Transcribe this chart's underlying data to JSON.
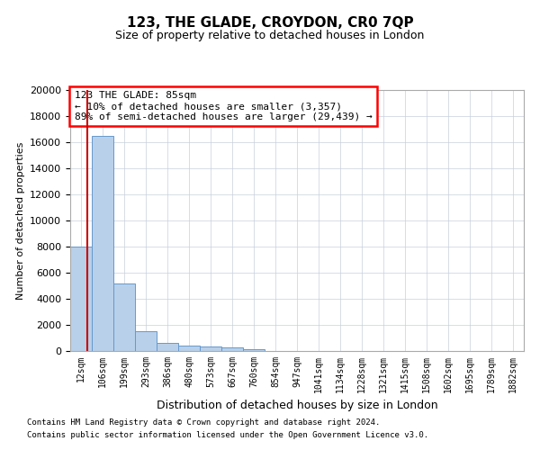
{
  "title1": "123, THE GLADE, CROYDON, CR0 7QP",
  "title2": "Size of property relative to detached houses in London",
  "xlabel": "Distribution of detached houses by size in London",
  "ylabel": "Number of detached properties",
  "bar_color": "#b8d0ea",
  "bar_edge_color": "#6699cc",
  "vline_color": "#cc0000",
  "annotation_title": "123 THE GLADE: 85sqm",
  "annotation_line1": "← 10% of detached houses are smaller (3,357)",
  "annotation_line2": "89% of semi-detached houses are larger (29,439) →",
  "footnote1": "Contains HM Land Registry data © Crown copyright and database right 2024.",
  "footnote2": "Contains public sector information licensed under the Open Government Licence v3.0.",
  "categories": [
    "12sqm",
    "106sqm",
    "199sqm",
    "293sqm",
    "386sqm",
    "480sqm",
    "573sqm",
    "667sqm",
    "760sqm",
    "854sqm",
    "947sqm",
    "1041sqm",
    "1134sqm",
    "1228sqm",
    "1321sqm",
    "1415sqm",
    "1508sqm",
    "1602sqm",
    "1695sqm",
    "1789sqm",
    "1882sqm"
  ],
  "values": [
    8000,
    16500,
    5200,
    1500,
    600,
    400,
    350,
    300,
    150,
    0,
    0,
    0,
    0,
    0,
    0,
    0,
    0,
    0,
    0,
    0,
    0
  ],
  "ylim": [
    0,
    20000
  ],
  "yticks": [
    0,
    2000,
    4000,
    6000,
    8000,
    10000,
    12000,
    14000,
    16000,
    18000,
    20000
  ],
  "background_color": "#ffffff",
  "grid_color": "#c8d0dc"
}
